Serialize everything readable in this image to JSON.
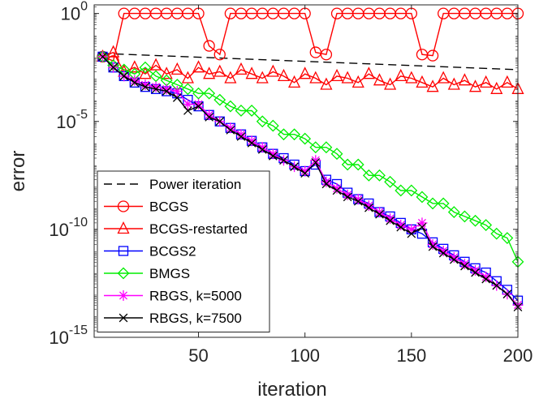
{
  "chart_data": {
    "type": "line",
    "title": "",
    "xlabel": "iteration",
    "ylabel": "error",
    "xlim": [
      1,
      200
    ],
    "ylim_log10": [
      -15,
      0.4
    ],
    "yscale": "log",
    "x_ticks": [
      50,
      100,
      150,
      200
    ],
    "x_tick_labels": [
      "50",
      "100",
      "150",
      "200"
    ],
    "y_ticks": [
      {
        "exp": -15,
        "base": "10",
        "label": "-15"
      },
      {
        "exp": -10,
        "base": "10",
        "label": "-10"
      },
      {
        "exp": -5,
        "base": "10",
        "label": "-5"
      },
      {
        "exp": 0,
        "base": "10",
        "label": "0"
      }
    ],
    "legend_position": "bottom-left",
    "series": [
      {
        "name": "Power iteration",
        "color": "#000000",
        "dash": "10,6",
        "marker": "none",
        "x": [
          5,
          200
        ],
        "y_log10": [
          -1.85,
          -2.6
        ]
      },
      {
        "name": "BCGS",
        "color": "#ff0000",
        "dash": "",
        "marker": "circle",
        "x": [
          5,
          10,
          15,
          20,
          25,
          30,
          35,
          40,
          45,
          50,
          55,
          60,
          65,
          70,
          75,
          80,
          85,
          90,
          95,
          100,
          105,
          110,
          115,
          120,
          125,
          130,
          135,
          140,
          145,
          150,
          155,
          160,
          165,
          170,
          175,
          180,
          185,
          190,
          195,
          200
        ],
        "y_log10": [
          -2.0,
          -2.2,
          0,
          0,
          0,
          0,
          0,
          0,
          0,
          0,
          -1.5,
          -1.9,
          0,
          0,
          0,
          0,
          0,
          0,
          0,
          0,
          -1.8,
          -1.9,
          0,
          0,
          0,
          0,
          0,
          0,
          0,
          0,
          -1.9,
          -1.95,
          0,
          0,
          0,
          0,
          0,
          0,
          0,
          0
        ]
      },
      {
        "name": "BCGS-restarted",
        "color": "#ff0000",
        "dash": "",
        "marker": "triangle",
        "x": [
          5,
          10,
          15,
          20,
          25,
          30,
          35,
          40,
          45,
          50,
          55,
          60,
          65,
          70,
          75,
          80,
          85,
          90,
          95,
          100,
          105,
          110,
          115,
          120,
          125,
          130,
          135,
          140,
          145,
          150,
          155,
          160,
          165,
          170,
          175,
          180,
          185,
          190,
          195,
          200
        ],
        "y_log10": [
          -2.0,
          -1.8,
          -2.7,
          -2.5,
          -2.8,
          -2.4,
          -2.8,
          -2.6,
          -3.0,
          -2.5,
          -2.8,
          -2.7,
          -3.0,
          -2.6,
          -2.8,
          -3.0,
          -2.7,
          -2.9,
          -3.2,
          -2.8,
          -3.0,
          -3.3,
          -2.9,
          -3.0,
          -3.2,
          -2.8,
          -3.1,
          -3.3,
          -2.9,
          -3.0,
          -3.2,
          -3.4,
          -3.0,
          -3.3,
          -3.1,
          -3.4,
          -3.2,
          -3.5,
          -3.2,
          -3.5
        ]
      },
      {
        "name": "BCGS2",
        "color": "#0000ff",
        "dash": "",
        "marker": "square",
        "x": [
          5,
          10,
          15,
          20,
          25,
          30,
          35,
          40,
          45,
          50,
          55,
          60,
          65,
          70,
          75,
          80,
          85,
          90,
          95,
          100,
          105,
          110,
          115,
          120,
          125,
          130,
          135,
          140,
          145,
          150,
          155,
          160,
          165,
          170,
          175,
          180,
          185,
          190,
          195,
          200
        ],
        "y_log10": [
          -2.0,
          -2.5,
          -2.9,
          -3.2,
          -3.4,
          -3.5,
          -3.6,
          -3.7,
          -4.0,
          -4.3,
          -4.7,
          -5.0,
          -5.3,
          -5.6,
          -5.9,
          -6.2,
          -6.5,
          -6.7,
          -7.0,
          -7.3,
          -7.0,
          -7.7,
          -7.9,
          -8.3,
          -8.6,
          -8.8,
          -9.2,
          -9.4,
          -9.7,
          -10.0,
          -10.2,
          -10.6,
          -10.9,
          -11.2,
          -11.5,
          -11.8,
          -12.0,
          -12.4,
          -12.8,
          -13.3
        ]
      },
      {
        "name": "BMGS",
        "color": "#00ee00",
        "dash": "",
        "marker": "diamond",
        "x": [
          5,
          10,
          15,
          20,
          25,
          30,
          35,
          40,
          45,
          50,
          55,
          60,
          65,
          70,
          75,
          80,
          85,
          90,
          95,
          100,
          105,
          110,
          115,
          120,
          125,
          130,
          135,
          140,
          145,
          150,
          155,
          160,
          165,
          170,
          175,
          180,
          185,
          190,
          195,
          200
        ],
        "y_log10": [
          -2.0,
          -2.4,
          -2.6,
          -2.8,
          -2.5,
          -2.9,
          -3.1,
          -3.3,
          -3.5,
          -3.7,
          -3.7,
          -4.0,
          -4.3,
          -4.5,
          -4.5,
          -5.0,
          -5.2,
          -5.6,
          -5.6,
          -5.8,
          -6.2,
          -6.2,
          -6.5,
          -7.0,
          -7.0,
          -7.5,
          -7.5,
          -7.8,
          -8.2,
          -8.2,
          -8.5,
          -8.8,
          -8.8,
          -9.2,
          -9.4,
          -9.6,
          -9.8,
          -10.2,
          -10.4,
          -11.5
        ]
      },
      {
        "name": "RBGS, k=5000",
        "color": "#ff00ff",
        "dash": "",
        "marker": "star",
        "x": [
          5,
          10,
          15,
          20,
          25,
          30,
          35,
          40,
          45,
          50,
          55,
          60,
          65,
          70,
          75,
          80,
          85,
          90,
          95,
          100,
          105,
          110,
          115,
          120,
          125,
          130,
          135,
          140,
          145,
          150,
          155,
          160,
          165,
          170,
          175,
          180,
          185,
          190,
          195,
          200
        ],
        "y_log10": [
          -2.0,
          -2.5,
          -2.9,
          -3.1,
          -3.3,
          -3.4,
          -3.5,
          -3.6,
          -4.2,
          -4.2,
          -4.7,
          -5.0,
          -5.3,
          -5.6,
          -5.9,
          -6.2,
          -6.5,
          -6.8,
          -7.1,
          -7.3,
          -6.8,
          -7.8,
          -8.1,
          -8.4,
          -8.6,
          -8.9,
          -9.2,
          -9.5,
          -9.8,
          -10.0,
          -9.7,
          -10.7,
          -11.0,
          -11.3,
          -11.6,
          -11.9,
          -12.2,
          -12.6,
          -13.0,
          -13.5
        ]
      },
      {
        "name": "RBGS, k=7500",
        "color": "#000000",
        "dash": "",
        "marker": "x",
        "x": [
          5,
          10,
          15,
          20,
          25,
          30,
          35,
          40,
          45,
          50,
          55,
          60,
          65,
          70,
          75,
          80,
          85,
          90,
          95,
          100,
          105,
          110,
          115,
          120,
          125,
          130,
          135,
          140,
          145,
          150,
          155,
          160,
          165,
          170,
          175,
          180,
          185,
          190,
          195,
          200
        ],
        "y_log10": [
          -2.0,
          -2.5,
          -2.9,
          -3.2,
          -3.4,
          -3.5,
          -3.6,
          -3.9,
          -4.5,
          -4.3,
          -4.8,
          -5.0,
          -5.4,
          -5.7,
          -6.0,
          -6.3,
          -6.6,
          -6.8,
          -7.1,
          -7.4,
          -6.9,
          -7.9,
          -8.2,
          -8.5,
          -8.7,
          -9.0,
          -9.3,
          -9.6,
          -9.9,
          -10.2,
          -9.9,
          -10.8,
          -11.1,
          -11.4,
          -11.7,
          -12.0,
          -12.3,
          -12.6,
          -13.0,
          -13.6
        ]
      }
    ]
  }
}
